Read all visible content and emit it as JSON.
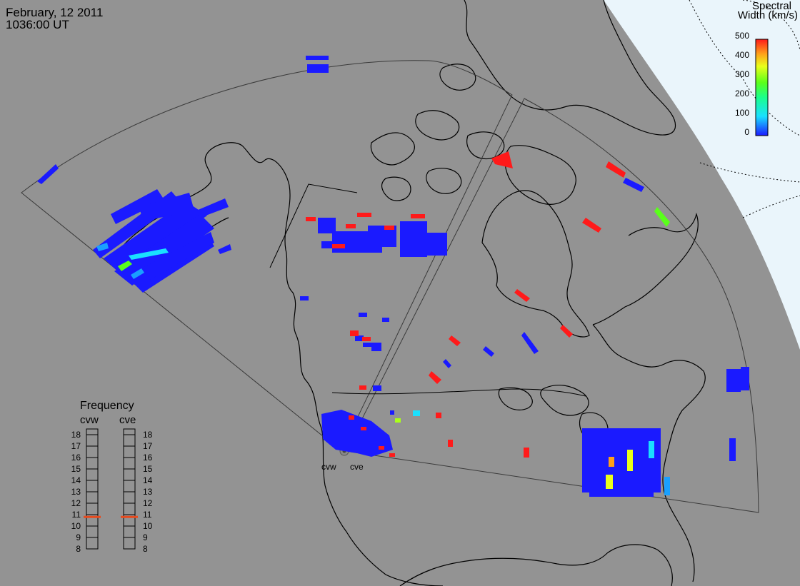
{
  "header": {
    "date": "February, 12 2011",
    "time": "1036:00 UT"
  },
  "colorbar": {
    "title_line1": "Spectral",
    "title_line2": "Width (km/s)",
    "ticks": [
      "500",
      "400",
      "300",
      "200",
      "100",
      "0"
    ],
    "scale_min": 0,
    "scale_max": 500
  },
  "radars": [
    {
      "code": "cvw"
    },
    {
      "code": "cve"
    }
  ],
  "frequency": {
    "title": "Frequency",
    "left_label": "cvw",
    "right_label": "cve",
    "levels": [
      "18",
      "17",
      "16",
      "15",
      "14",
      "13",
      "12",
      "11",
      "10",
      "9",
      "8"
    ],
    "cvw_mhz": 10.8,
    "cve_mhz": 10.8
  },
  "colors": {
    "background": "#939393",
    "daylight": "#eaf5fb",
    "frequency_marker": "#e84b1e"
  }
}
